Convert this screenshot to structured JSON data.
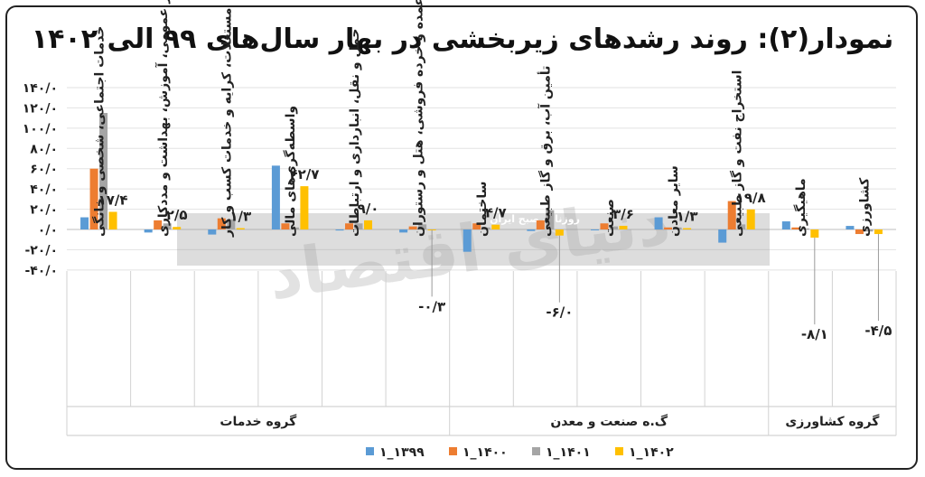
{
  "chart_data": {
    "type": "bar",
    "title": "نمودار(۲): روند رشدهای زیربخشی در بهار سال‌های ۹۹ الی ۱۴۰۲",
    "ylim": [
      -40,
      140
    ],
    "yticks": [
      -40,
      -20,
      0,
      20,
      40,
      60,
      80,
      100,
      120,
      140
    ],
    "ytick_labels": [
      "-۴۰/۰",
      "-۲۰/۰",
      "۰/۰",
      "۲۰/۰",
      "۴۰/۰",
      "۶۰/۰",
      "۸۰/۰",
      "۱۰۰/۰",
      "۱۲۰/۰",
      "۱۴۰/۰"
    ],
    "grid": true,
    "legend_position": "bottom",
    "categories": [
      "کشاورزی",
      "ماهیگیری",
      "استخراج نفت و گاز طبیعی",
      "سایر معادن",
      "صنعت",
      "تأمین آب، برق و گاز طبیعی",
      "ساختمان",
      "عمده و خرده فروشی، هتل و رستوران",
      "حمل و نقل، انبارداری و ارتباطات",
      "واسطه‌گری‌های مالی",
      "مستغلات، کرایه و خدمات کسب و کار",
      "امور عمومی، آموزش، بهداشت و مددکاری",
      "خدمات اجتماعی، شخصی و خانگی"
    ],
    "series": [
      {
        "name": "۱_۱۳۹۹",
        "color": "#5b9bd5",
        "values": [
          3.5,
          8.0,
          -13.0,
          12.0,
          -0.5,
          -1.5,
          -22.0,
          -3.0,
          -1.0,
          63.0,
          -5.0,
          -3.0,
          12.0
        ]
      },
      {
        "name": "۱_۱۴۰۰",
        "color": "#ed7d31",
        "values": [
          -4.5,
          2.0,
          28.0,
          2.0,
          6.0,
          9.0,
          6.0,
          3.0,
          6.0,
          6.0,
          11.0,
          9.0,
          60.0
        ]
      },
      {
        "name": "۱_۱۴۰۱",
        "color": "#a5a5a5",
        "values": [
          -2.0,
          1.0,
          5.0,
          2.0,
          3.0,
          19.0,
          2.0,
          5.0,
          6.0,
          2.0,
          10.0,
          6.0,
          115.0
        ]
      },
      {
        "name": "۱_۱۴۰۲",
        "color": "#ffc000",
        "values": [
          -4.5,
          -8.1,
          19.8,
          1.3,
          3.6,
          -6.0,
          4.7,
          -0.3,
          9.0,
          42.7,
          1.3,
          2.5,
          17.4
        ]
      }
    ],
    "data_labels": [
      {
        "category_index": 0,
        "text": "-۴/۵"
      },
      {
        "category_index": 1,
        "text": "-۸/۱"
      },
      {
        "category_index": 2,
        "text": "۱۹/۸"
      },
      {
        "category_index": 3,
        "text": "۱/۳"
      },
      {
        "category_index": 4,
        "text": "۳/۶"
      },
      {
        "category_index": 5,
        "text": "-۶/۰"
      },
      {
        "category_index": 6,
        "text": "۴/۷"
      },
      {
        "category_index": 7,
        "text": "-۰/۳"
      },
      {
        "category_index": 8,
        "text": "۹/۰"
      },
      {
        "category_index": 9,
        "text": "۴۲/۷"
      },
      {
        "category_index": 10,
        "text": "۱/۳"
      },
      {
        "category_index": 11,
        "text": "۲/۵"
      },
      {
        "category_index": 12,
        "text": "۱۷/۴"
      }
    ],
    "groups": [
      {
        "label": "گروه کشاورزی",
        "start": 0,
        "end": 1
      },
      {
        "label": "گ.ه صنعت و معدن",
        "start": 2,
        "end": 6
      },
      {
        "label": "گروه خدمات",
        "start": 7,
        "end": 12
      }
    ]
  },
  "watermark": {
    "text": "دنیای اقتصاد",
    "subtext": "روزنامه صبح ایران"
  }
}
